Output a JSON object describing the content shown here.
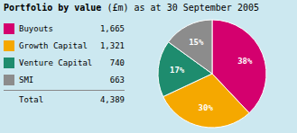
{
  "chart_data": {
    "type": "pie",
    "title": "Portfolio by value",
    "subtitle": "(£m) as at 30 September 2005",
    "categories": [
      "Buyouts",
      "Growth Capital",
      "Venture Capital",
      "SMI"
    ],
    "values": [
      38,
      30,
      17,
      15
    ],
    "value_labels": [
      "38%",
      "30%",
      "17%",
      "15%"
    ],
    "data_labels": true,
    "colors": [
      "#d4006e",
      "#f5a800",
      "#1e8c6e",
      "#8c8c8c"
    ],
    "amounts": [
      1665,
      1321,
      740,
      663
    ],
    "total_name": "Total",
    "total": 4389
  }
}
